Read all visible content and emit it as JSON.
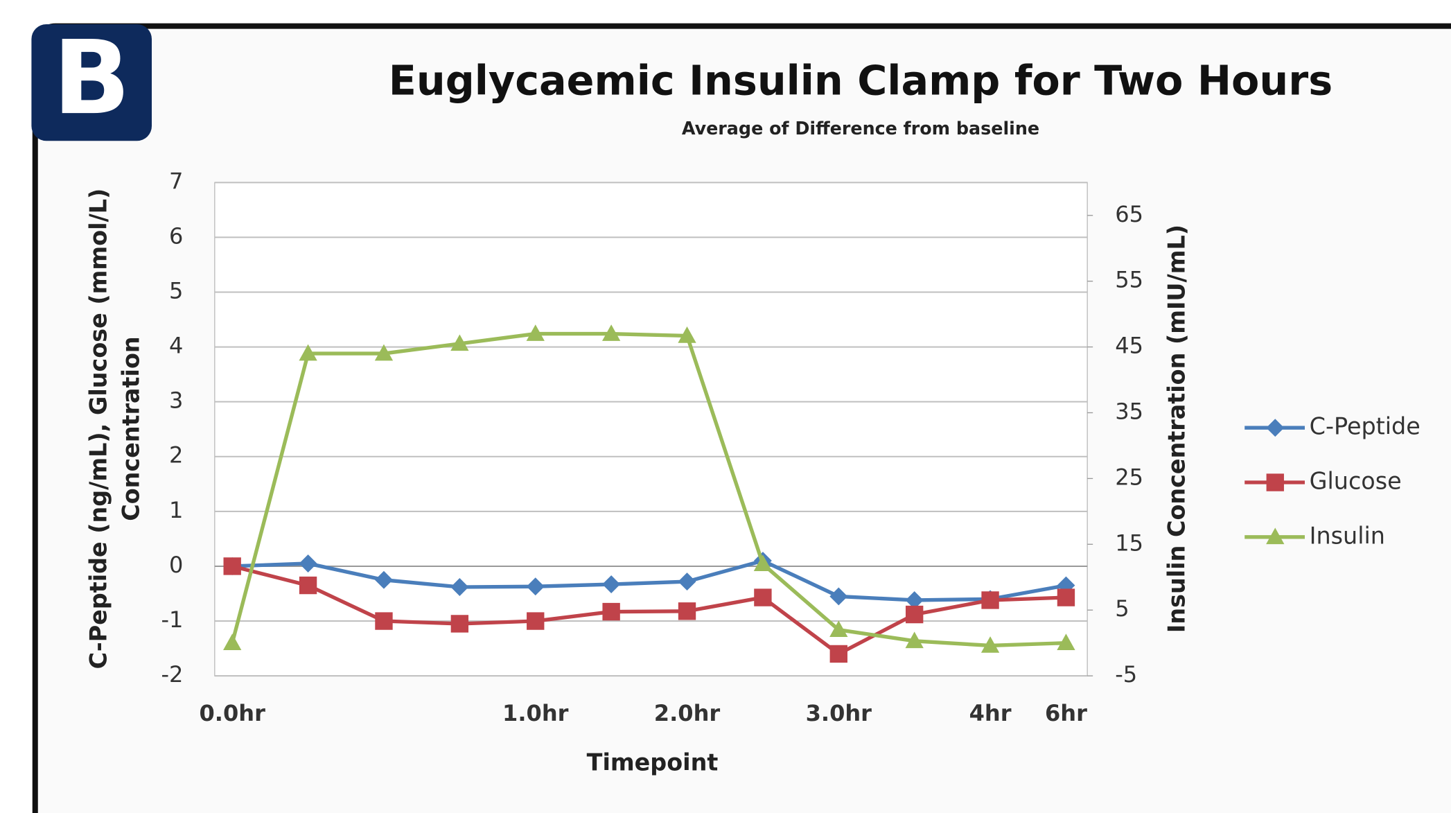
{
  "badge": "B",
  "chart_data": {
    "type": "line",
    "title": "Euglycaemic Insulin Clamp for Two Hours",
    "subtitle": "Average of Difference from baseline",
    "x_label": "Timepoint",
    "y_label": [
      "C-Peptide (ng/mL), Glucose (mmol/L)",
      "Concentration"
    ],
    "y2_label": "Insulin Concentration (mIU/mL)",
    "categories": [
      "0.0hr",
      null,
      null,
      null,
      "1.0hr",
      null,
      "2.0hr",
      null,
      "3.0hr",
      null,
      "4hr",
      "6hr"
    ],
    "ylim": [
      -2,
      7
    ],
    "yticks": [
      -2,
      -1,
      0,
      1,
      2,
      3,
      4,
      5,
      6,
      7
    ],
    "y2lim": [
      -5,
      70
    ],
    "y2ticks": [
      -5,
      5,
      15,
      25,
      35,
      45,
      55,
      65
    ],
    "grid": true,
    "legend": "right",
    "series": [
      {
        "name": "C-Peptide",
        "color": "#4a7ebb",
        "marker": "diamond",
        "values": [
          0,
          0.05,
          -0.25,
          -0.38,
          -0.37,
          -0.33,
          -0.28,
          0.1,
          -0.55,
          -0.62,
          -0.6,
          -0.35
        ]
      },
      {
        "name": "Glucose",
        "color": "#c0434a",
        "marker": "square",
        "values": [
          0,
          -0.35,
          -1.0,
          -1.05,
          -1.0,
          -0.83,
          -0.82,
          -0.57,
          -1.6,
          -0.88,
          -0.62,
          -0.57
        ]
      },
      {
        "name": "Insulin",
        "color": "#9bbb59",
        "marker": "triangle",
        "axis": "y2",
        "values": [
          0,
          44,
          44,
          45.5,
          47,
          47,
          46.7,
          12,
          2,
          0.3,
          -0.4,
          0
        ]
      }
    ]
  }
}
